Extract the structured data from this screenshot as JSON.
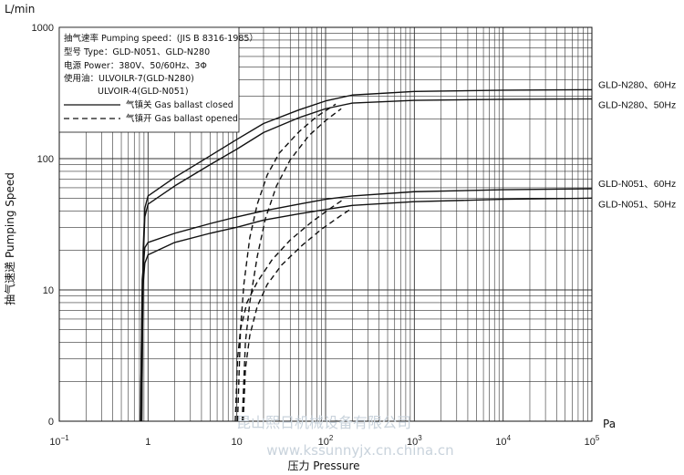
{
  "chart_data": {
    "type": "line",
    "title": "",
    "x_scale": "log",
    "y_scale": "log",
    "xlim": [
      0.1,
      100000
    ],
    "ylim": [
      1,
      1000
    ],
    "xlabel": "压力 Pressure",
    "ylabel": "抽气速递 Pumping Speed",
    "x_unit": "Pa",
    "y_unit": "L/min",
    "x_ticks": [
      {
        "v": 0.1,
        "base": "10",
        "exp": "−1"
      },
      {
        "v": 1,
        "base": "1",
        "exp": ""
      },
      {
        "v": 10,
        "base": "10",
        "exp": ""
      },
      {
        "v": 100,
        "base": "10",
        "exp": "2"
      },
      {
        "v": 1000,
        "base": "10",
        "exp": "3"
      },
      {
        "v": 10000,
        "base": "10",
        "exp": "4"
      },
      {
        "v": 100000,
        "base": "10",
        "exp": "5"
      }
    ],
    "y_ticks": [
      {
        "v": 1,
        "label": "0"
      },
      {
        "v": 10,
        "label": "10"
      },
      {
        "v": 100,
        "label": "100"
      },
      {
        "v": 1000,
        "label": "1000"
      }
    ],
    "grid": true,
    "info_box": {
      "lines": [
        "抽气速率 Pumping speed：(JIS B 8316-1985）",
        "型号 Type：GLD-N051、GLD-N280",
        "电源 Power：380V、50/60Hz、3Φ",
        "使用油：ULVOILR-7(GLD-N280)",
        "ULVOIR-4(GLD-N051)"
      ],
      "legend": [
        {
          "style": "solid",
          "label": "气镇关 Gas ballast closed"
        },
        {
          "style": "dashed",
          "label": "气镇开 Gas ballast opened"
        }
      ]
    },
    "series": [
      {
        "name": "GLD-N280、60Hz",
        "style": "solid",
        "points": [
          [
            0.85,
            1
          ],
          [
            0.88,
            20
          ],
          [
            0.92,
            42
          ],
          [
            1,
            52
          ],
          [
            2,
            72
          ],
          [
            5,
            105
          ],
          [
            10,
            140
          ],
          [
            20,
            185
          ],
          [
            50,
            235
          ],
          [
            100,
            275
          ],
          [
            200,
            305
          ],
          [
            1000,
            325
          ],
          [
            10000,
            332
          ],
          [
            100000,
            335
          ]
        ]
      },
      {
        "name": "GLD-N280、50Hz",
        "style": "solid",
        "points": [
          [
            0.85,
            1
          ],
          [
            0.88,
            16
          ],
          [
            0.92,
            36
          ],
          [
            1,
            45
          ],
          [
            2,
            62
          ],
          [
            5,
            90
          ],
          [
            10,
            118
          ],
          [
            20,
            158
          ],
          [
            50,
            205
          ],
          [
            100,
            240
          ],
          [
            200,
            265
          ],
          [
            1000,
            278
          ],
          [
            10000,
            283
          ],
          [
            100000,
            285
          ]
        ]
      },
      {
        "name": "GLD-N051、60Hz",
        "style": "solid",
        "points": [
          [
            0.82,
            1
          ],
          [
            0.86,
            12
          ],
          [
            0.92,
            21
          ],
          [
            1,
            23
          ],
          [
            2,
            27
          ],
          [
            5,
            32
          ],
          [
            10,
            36
          ],
          [
            20,
            40
          ],
          [
            50,
            45
          ],
          [
            100,
            49
          ],
          [
            200,
            52
          ],
          [
            1000,
            56
          ],
          [
            10000,
            58
          ],
          [
            100000,
            59
          ]
        ]
      },
      {
        "name": "GLD-N051、50Hz",
        "style": "solid",
        "points": [
          [
            0.82,
            1
          ],
          [
            0.86,
            9
          ],
          [
            0.92,
            16
          ],
          [
            1,
            18.5
          ],
          [
            2,
            23
          ],
          [
            5,
            27
          ],
          [
            10,
            30
          ],
          [
            20,
            34
          ],
          [
            50,
            38
          ],
          [
            100,
            41
          ],
          [
            200,
            44
          ],
          [
            1000,
            47
          ],
          [
            10000,
            49
          ],
          [
            100000,
            50
          ]
        ]
      },
      {
        "name": "",
        "style": "dashed",
        "points": [
          [
            10.2,
            1
          ],
          [
            11,
            5
          ],
          [
            12,
            11
          ],
          [
            14,
            25
          ],
          [
            17,
            45
          ],
          [
            22,
            75
          ],
          [
            30,
            110
          ],
          [
            50,
            160
          ],
          [
            80,
            210
          ],
          [
            130,
            260
          ]
        ]
      },
      {
        "name": "",
        "style": "dashed",
        "points": [
          [
            11.5,
            1
          ],
          [
            12.5,
            4
          ],
          [
            14,
            8
          ],
          [
            17,
            18
          ],
          [
            21,
            35
          ],
          [
            28,
            62
          ],
          [
            40,
            98
          ],
          [
            65,
            150
          ],
          [
            100,
            195
          ],
          [
            150,
            240
          ]
        ]
      },
      {
        "name": "",
        "style": "dashed",
        "points": [
          [
            9.6,
            1
          ],
          [
            10.2,
            3
          ],
          [
            11,
            5
          ],
          [
            13,
            8
          ],
          [
            17,
            11.5
          ],
          [
            25,
            17
          ],
          [
            40,
            24
          ],
          [
            70,
            33
          ],
          [
            120,
            43
          ],
          [
            160,
            49
          ]
        ]
      },
      {
        "name": "",
        "style": "dashed",
        "points": [
          [
            11.8,
            1
          ],
          [
            12.5,
            2.5
          ],
          [
            14,
            4.5
          ],
          [
            17,
            7.5
          ],
          [
            22,
            11
          ],
          [
            32,
            15.5
          ],
          [
            55,
            22
          ],
          [
            90,
            29
          ],
          [
            150,
            37
          ],
          [
            200,
            42
          ]
        ]
      }
    ]
  },
  "watermark": {
    "company": "昆山熙日机械设备有限公司",
    "url": "www.kssunnyjx.cn.china.cn"
  }
}
